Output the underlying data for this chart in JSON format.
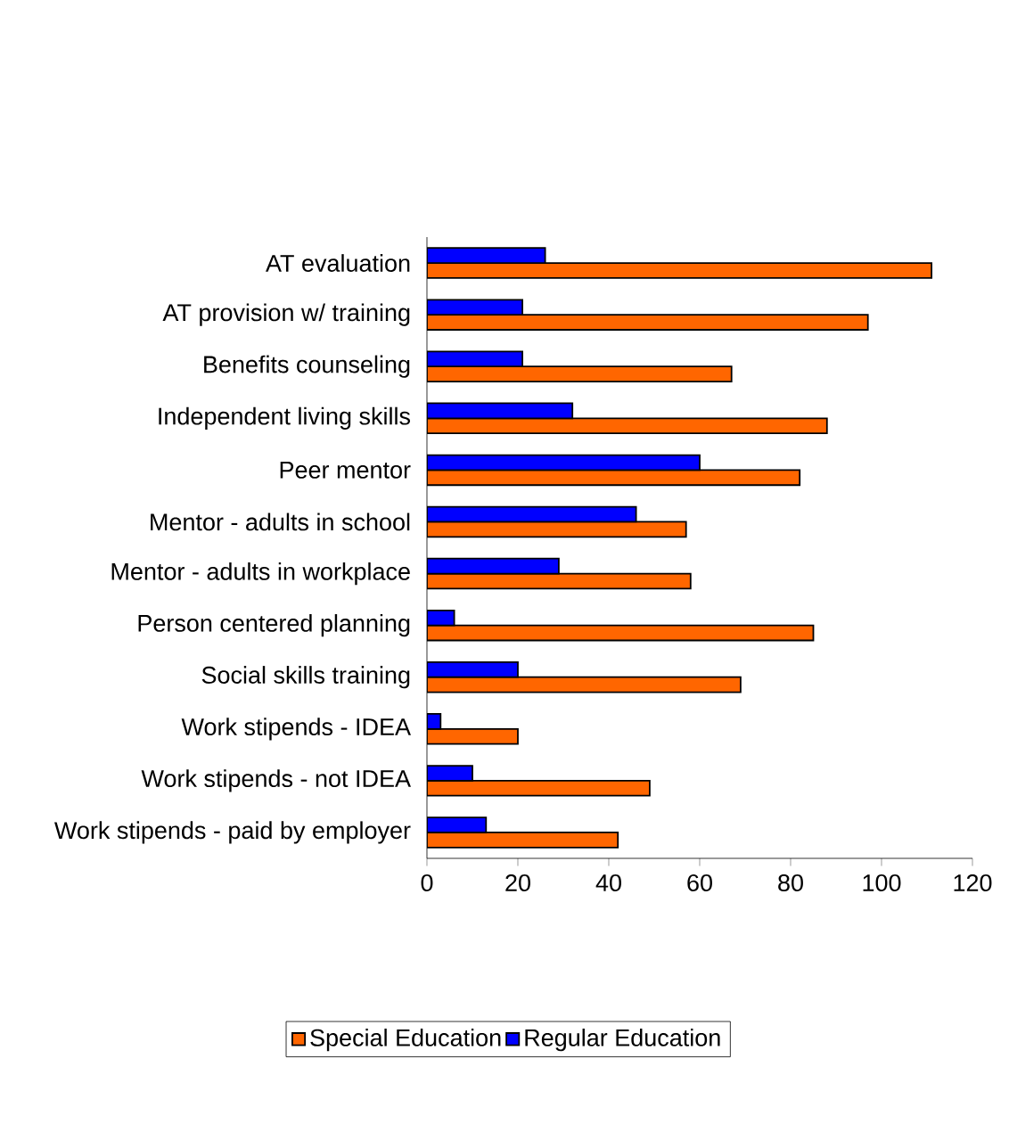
{
  "chart_data": {
    "type": "bar",
    "orientation": "horizontal",
    "categories": [
      "AT evaluation",
      "AT provision w/ training",
      "Benefits counseling",
      "Independent living skills",
      "Peer mentor",
      "Mentor - adults in school",
      "Mentor - adults in workplace",
      "Person centered planning",
      "Social skills training",
      "Work stipends - IDEA",
      "Work stipends - not IDEA",
      "Work stipends - paid by employer"
    ],
    "series": [
      {
        "name": "Special Education",
        "color": "#ff6600",
        "values": [
          111,
          97,
          67,
          88,
          82,
          57,
          58,
          85,
          69,
          20,
          49,
          42
        ]
      },
      {
        "name": "Regular Education",
        "color": "#0000ff",
        "values": [
          26,
          21,
          21,
          32,
          60,
          46,
          29,
          6,
          20,
          3,
          10,
          13
        ]
      }
    ],
    "xlim": [
      0,
      120
    ],
    "xticks": [
      0,
      20,
      40,
      60,
      80,
      100,
      120
    ],
    "legend": "bottom"
  }
}
